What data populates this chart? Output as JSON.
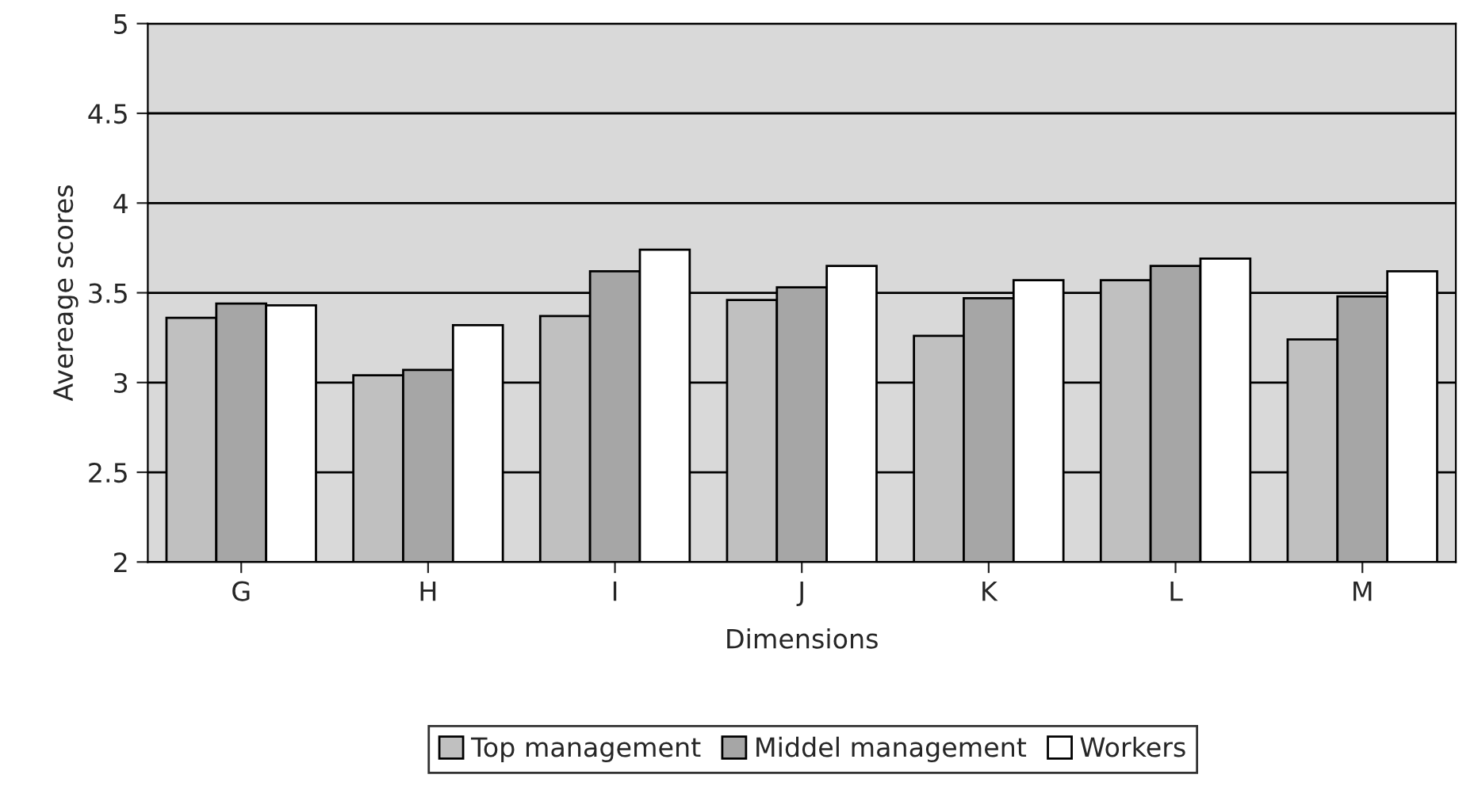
{
  "chart_data": {
    "type": "bar",
    "xlabel": "Dimensions",
    "ylabel": "Avereage scores",
    "categories": [
      "G",
      "H",
      "I",
      "J",
      "K",
      "L",
      "M"
    ],
    "series": [
      {
        "name": "Top management",
        "color": "#c0c0c0",
        "values": [
          3.36,
          3.04,
          3.37,
          3.46,
          3.26,
          3.57,
          3.24
        ]
      },
      {
        "name": "Middel management",
        "color": "#a6a6a6",
        "values": [
          3.44,
          3.07,
          3.62,
          3.53,
          3.47,
          3.65,
          3.48
        ]
      },
      {
        "name": "Workers",
        "color": "#ffffff",
        "values": [
          3.43,
          3.32,
          3.74,
          3.65,
          3.57,
          3.69,
          3.62
        ]
      }
    ],
    "ylim": [
      2,
      5
    ],
    "yticks": [
      2,
      2.5,
      3,
      3.5,
      4,
      4.5,
      5
    ],
    "grid": "y",
    "legend": "bottom"
  }
}
